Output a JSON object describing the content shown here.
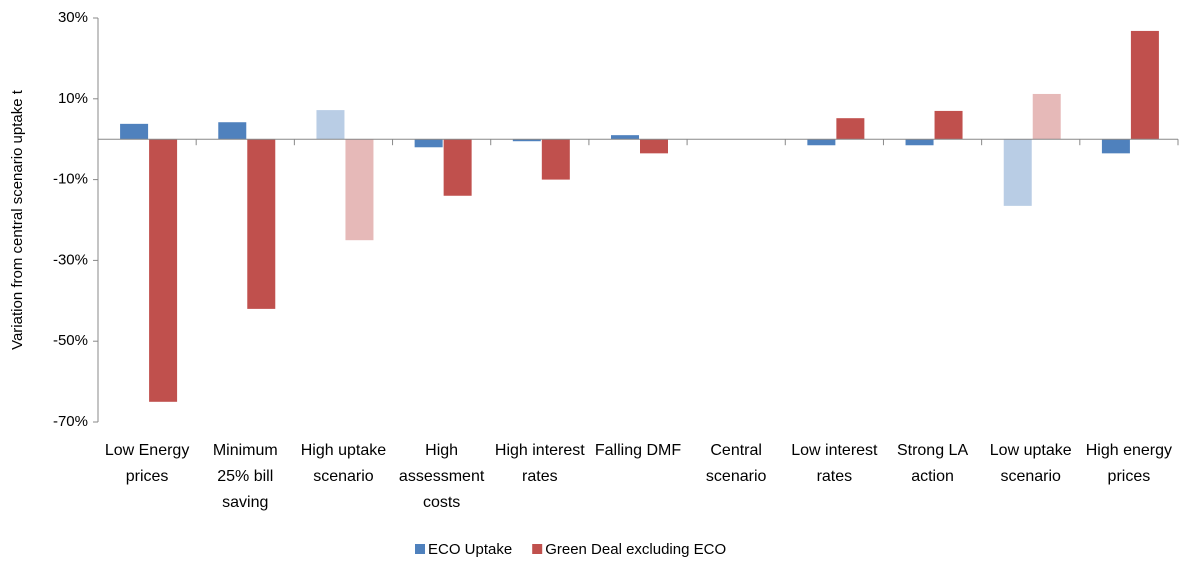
{
  "chart_data": {
    "type": "bar",
    "y_label": "Variation from central scenario uptake t",
    "categories": [
      "Low Energy prices",
      "Minimum 25% bill saving",
      "High uptake scenario",
      "High assessment costs",
      "High interest rates",
      "Falling DMF",
      "Central scenario",
      "Low interest rates",
      "Strong LA action",
      "Low uptake scenario",
      "High energy prices"
    ],
    "series": [
      {
        "name": "ECO Uptake",
        "color": "#4f81bd",
        "colors": [
          "#4f81bd",
          "#4f81bd",
          "#b9cde5",
          "#4f81bd",
          "#4f81bd",
          "#4f81bd",
          "#4f81bd",
          "#4f81bd",
          "#4f81bd",
          "#b9cde5",
          "#4f81bd"
        ],
        "values": [
          3.8,
          4.2,
          7.2,
          -2,
          -0.5,
          1,
          0,
          -1.5,
          -1.5,
          -16.5,
          -3.5
        ]
      },
      {
        "name": "Green Deal excluding ECO",
        "color": "#c0504d",
        "colors": [
          "#c0504d",
          "#c0504d",
          "#e6b9b8",
          "#c0504d",
          "#c0504d",
          "#c0504d",
          "#c0504d",
          "#c0504d",
          "#c0504d",
          "#e6b9b8",
          "#c0504d"
        ],
        "values": [
          -65,
          -42,
          -25,
          -14,
          -10,
          -3.5,
          0,
          5.2,
          7,
          11.2,
          26.8
        ]
      }
    ],
    "ylim": [
      -70,
      30
    ],
    "yticks": [
      {
        "value": 30,
        "label": "30%"
      },
      {
        "value": 10,
        "label": "10%"
      },
      {
        "value": -10,
        "label": "-10%"
      },
      {
        "value": -30,
        "label": "-30%"
      },
      {
        "value": -50,
        "label": "-50%"
      },
      {
        "value": -70,
        "label": "-70%"
      }
    ],
    "legend": "bottom"
  }
}
